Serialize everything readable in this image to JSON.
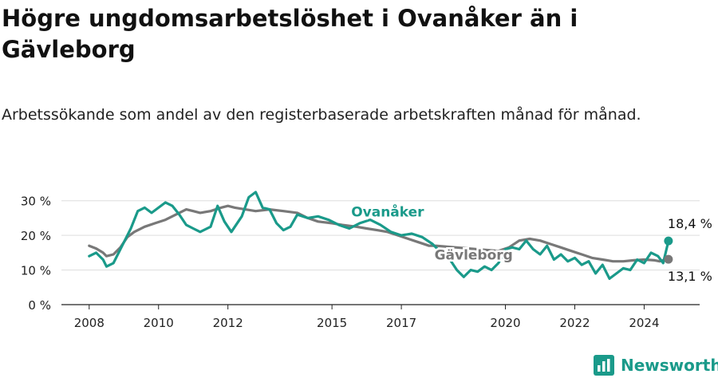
{
  "title": "Högre ungdomsarbetslöshet i Ovanåker än i Gävleborg",
  "subtitle": "Arbetssökande som andel av den registerbaserade arbetskraften månad för månad.",
  "brand": {
    "name": "Newsworthy",
    "icon": "newsworthy-logo-icon",
    "color": "#1a9a8a"
  },
  "chart_data": {
    "type": "line",
    "x_unit": "year",
    "y_unit": "%",
    "ylim": [
      0,
      35
    ],
    "yticks": [
      0,
      10,
      20,
      30
    ],
    "ytick_labels": [
      "0 %",
      "10 %",
      "20 %",
      "30 %"
    ],
    "xlim": [
      2007.2,
      2025.6
    ],
    "xticks": [
      2008,
      2010,
      2012,
      2015,
      2017,
      2020,
      2022,
      2024
    ],
    "xtick_labels": [
      "2008",
      "2010",
      "2012",
      "2015",
      "2017",
      "2020",
      "2022",
      "2024"
    ],
    "grid": "horizontal",
    "series": [
      {
        "name": "Gävleborg",
        "color": "#787878",
        "end_label": "13,1 %",
        "points": [
          [
            2008.0,
            17.0
          ],
          [
            2008.2,
            16.2
          ],
          [
            2008.4,
            15.0
          ],
          [
            2008.5,
            14.0
          ],
          [
            2008.7,
            14.5
          ],
          [
            2008.9,
            16.5
          ],
          [
            2009.1,
            19.5
          ],
          [
            2009.3,
            21.0
          ],
          [
            2009.6,
            22.5
          ],
          [
            2009.9,
            23.5
          ],
          [
            2010.2,
            24.5
          ],
          [
            2010.5,
            26.0
          ],
          [
            2010.8,
            27.5
          ],
          [
            2011.0,
            27.0
          ],
          [
            2011.2,
            26.5
          ],
          [
            2011.5,
            27.0
          ],
          [
            2011.8,
            28.0
          ],
          [
            2012.0,
            28.5
          ],
          [
            2012.2,
            28.0
          ],
          [
            2012.5,
            27.5
          ],
          [
            2012.8,
            27.0
          ],
          [
            2013.2,
            27.5
          ],
          [
            2013.6,
            27.0
          ],
          [
            2014.0,
            26.5
          ],
          [
            2014.3,
            25.0
          ],
          [
            2014.6,
            24.0
          ],
          [
            2015.0,
            23.5
          ],
          [
            2015.3,
            23.0
          ],
          [
            2015.7,
            22.5
          ],
          [
            2016.0,
            22.0
          ],
          [
            2016.3,
            21.5
          ],
          [
            2016.6,
            21.0
          ],
          [
            2016.9,
            20.0
          ],
          [
            2017.2,
            19.0
          ],
          [
            2017.5,
            18.0
          ],
          [
            2017.8,
            17.0
          ],
          [
            2018.0,
            17.0
          ],
          [
            2019.8,
            15.5
          ],
          [
            2020.1,
            16.5
          ],
          [
            2020.4,
            18.5
          ],
          [
            2020.7,
            19.0
          ],
          [
            2021.0,
            18.5
          ],
          [
            2021.3,
            17.5
          ],
          [
            2021.6,
            16.5
          ],
          [
            2021.9,
            15.5
          ],
          [
            2022.2,
            14.5
          ],
          [
            2022.5,
            13.5
          ],
          [
            2022.8,
            13.0
          ],
          [
            2023.1,
            12.5
          ],
          [
            2023.4,
            12.5
          ],
          [
            2023.7,
            12.8
          ],
          [
            2024.0,
            13.0
          ],
          [
            2024.3,
            12.8
          ],
          [
            2024.45,
            12.5
          ],
          [
            2024.6,
            13.0
          ],
          [
            2024.7,
            13.1
          ]
        ]
      },
      {
        "name": "Ovanåker",
        "color": "#1a9a8a",
        "end_label": "18,4 %",
        "points": [
          [
            2008.0,
            14.0
          ],
          [
            2008.2,
            15.0
          ],
          [
            2008.4,
            13.0
          ],
          [
            2008.5,
            11.0
          ],
          [
            2008.7,
            12.0
          ],
          [
            2009.0,
            18.0
          ],
          [
            2009.2,
            22.0
          ],
          [
            2009.4,
            27.0
          ],
          [
            2009.6,
            28.0
          ],
          [
            2009.8,
            26.5
          ],
          [
            2010.0,
            28.0
          ],
          [
            2010.2,
            29.5
          ],
          [
            2010.4,
            28.5
          ],
          [
            2010.6,
            26.0
          ],
          [
            2010.8,
            23.0
          ],
          [
            2011.0,
            22.0
          ],
          [
            2011.2,
            21.0
          ],
          [
            2011.5,
            22.5
          ],
          [
            2011.7,
            28.5
          ],
          [
            2011.9,
            24.0
          ],
          [
            2012.1,
            21.0
          ],
          [
            2012.4,
            25.5
          ],
          [
            2012.6,
            31.0
          ],
          [
            2012.8,
            32.5
          ],
          [
            2013.0,
            28.0
          ],
          [
            2013.2,
            27.5
          ],
          [
            2013.4,
            23.5
          ],
          [
            2013.6,
            21.5
          ],
          [
            2013.8,
            22.5
          ],
          [
            2014.0,
            26.0
          ],
          [
            2014.3,
            25.0
          ],
          [
            2014.6,
            25.5
          ],
          [
            2014.9,
            24.5
          ],
          [
            2015.2,
            23.0
          ],
          [
            2015.5,
            22.0
          ],
          [
            2015.8,
            23.5
          ],
          [
            2016.1,
            24.5
          ],
          [
            2016.4,
            23.0
          ],
          [
            2016.7,
            21.0
          ],
          [
            2017.0,
            20.0
          ],
          [
            2017.3,
            20.5
          ],
          [
            2017.6,
            19.5
          ],
          [
            2017.9,
            17.5
          ],
          [
            2018.1,
            15.5
          ],
          [
            2018.4,
            13.0
          ],
          [
            2018.6,
            10.0
          ],
          [
            2018.8,
            8.0
          ],
          [
            2019.0,
            10.0
          ],
          [
            2019.2,
            9.5
          ],
          [
            2019.4,
            11.0
          ],
          [
            2019.6,
            10.0
          ],
          [
            2019.8,
            12.0
          ],
          [
            2020.0,
            16.0
          ],
          [
            2020.2,
            16.5
          ],
          [
            2020.4,
            16.0
          ],
          [
            2020.6,
            18.5
          ],
          [
            2020.8,
            16.0
          ],
          [
            2021.0,
            14.5
          ],
          [
            2021.2,
            17.0
          ],
          [
            2021.4,
            13.0
          ],
          [
            2021.6,
            14.5
          ],
          [
            2021.8,
            12.5
          ],
          [
            2022.0,
            13.5
          ],
          [
            2022.2,
            11.5
          ],
          [
            2022.4,
            12.5
          ],
          [
            2022.6,
            9.0
          ],
          [
            2022.8,
            11.5
          ],
          [
            2023.0,
            7.5
          ],
          [
            2023.2,
            9.0
          ],
          [
            2023.4,
            10.5
          ],
          [
            2023.6,
            10.0
          ],
          [
            2023.8,
            13.0
          ],
          [
            2024.0,
            12.0
          ],
          [
            2024.2,
            15.0
          ],
          [
            2024.4,
            14.0
          ],
          [
            2024.55,
            12.0
          ],
          [
            2024.7,
            18.4
          ]
        ]
      }
    ]
  }
}
